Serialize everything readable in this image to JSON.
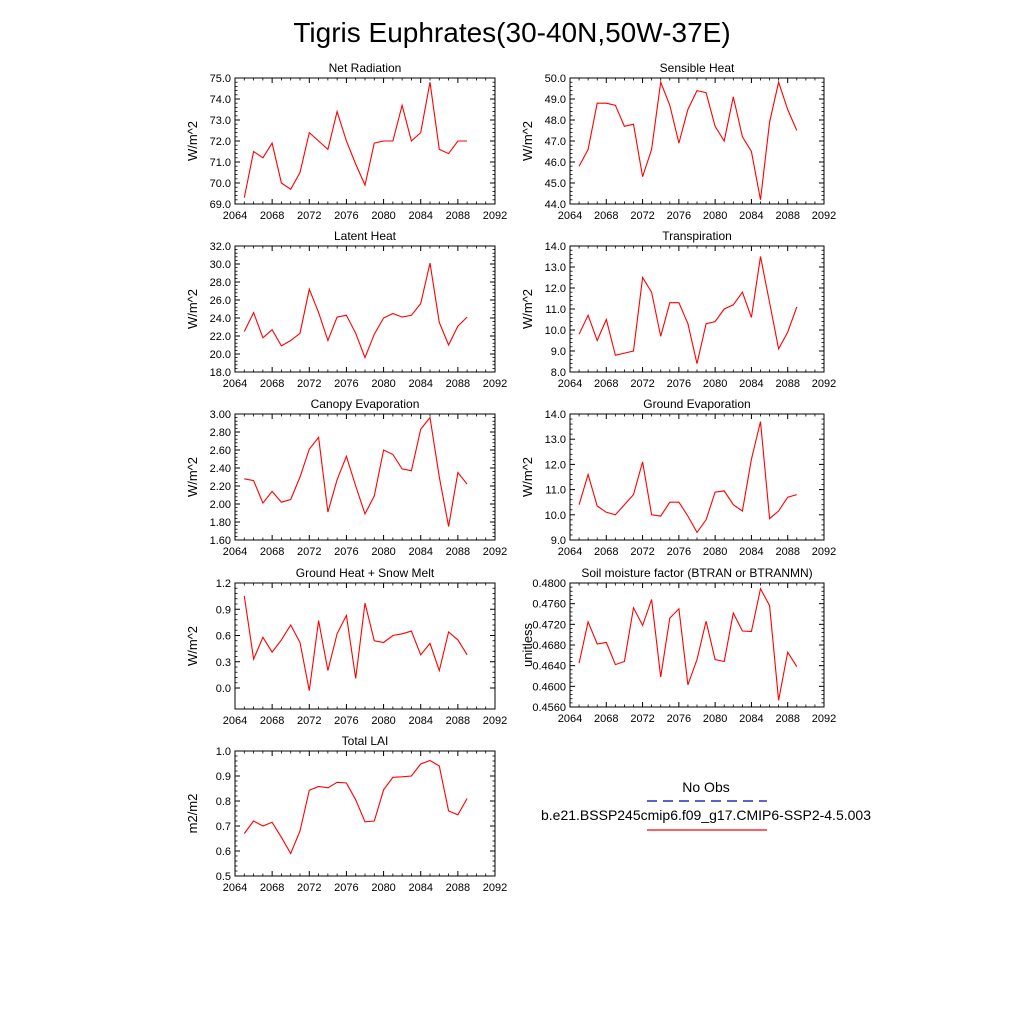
{
  "figure": {
    "title": "Tigris Euphrates(30-40N,50W-37E)"
  },
  "legend": {
    "obs_label": "No Obs",
    "obs_color": "#0000aa",
    "model_label": "b.e21.BSSP245cmip6.f09_g17.CMIP6-SSP2-4.5.003",
    "model_color": "#ff0000"
  },
  "chart_data": [
    {
      "type": "line",
      "title": "Net Radiation",
      "ylabel": "W/m^2",
      "xlabel": "",
      "xlim": [
        2064,
        2092
      ],
      "ylim": [
        69.0,
        75.0
      ],
      "x_ticks": [
        2064,
        2068,
        2072,
        2076,
        2080,
        2084,
        2088,
        2092
      ],
      "y_ticks": [
        "69.0",
        "70.0",
        "71.0",
        "72.0",
        "73.0",
        "74.0",
        "75.0"
      ],
      "series": [
        {
          "color": "#ff0000",
          "x": [
            2065,
            2066,
            2067,
            2068,
            2069,
            2070,
            2071,
            2072,
            2073,
            2074,
            2075,
            2076,
            2077,
            2078,
            2079,
            2080,
            2081,
            2082,
            2083,
            2084,
            2085,
            2086,
            2087,
            2088,
            2089
          ],
          "values": [
            69.3,
            71.5,
            71.2,
            71.9,
            70.0,
            69.7,
            70.5,
            72.4,
            72.0,
            71.6,
            73.4,
            72.0,
            70.9,
            69.9,
            71.9,
            72.0,
            72.0,
            73.7,
            72.0,
            72.4,
            74.8,
            71.6,
            71.4,
            72.0,
            72.0
          ]
        }
      ]
    },
    {
      "type": "line",
      "title": "Sensible Heat",
      "ylabel": "W/m^2",
      "xlabel": "",
      "xlim": [
        2064,
        2092
      ],
      "ylim": [
        44.0,
        50.0
      ],
      "x_ticks": [
        2064,
        2068,
        2072,
        2076,
        2080,
        2084,
        2088,
        2092
      ],
      "y_ticks": [
        "44.0",
        "45.0",
        "46.0",
        "47.0",
        "48.0",
        "49.0",
        "50.0"
      ],
      "series": [
        {
          "color": "#ff0000",
          "x": [
            2065,
            2066,
            2067,
            2068,
            2069,
            2070,
            2071,
            2072,
            2073,
            2074,
            2075,
            2076,
            2077,
            2078,
            2079,
            2080,
            2081,
            2082,
            2083,
            2084,
            2085,
            2086,
            2087,
            2088,
            2089
          ],
          "values": [
            45.8,
            46.6,
            48.8,
            48.8,
            48.7,
            47.7,
            47.8,
            45.3,
            46.6,
            49.8,
            48.7,
            46.9,
            48.5,
            49.4,
            49.3,
            47.7,
            47.0,
            49.1,
            47.2,
            46.5,
            44.2,
            47.9,
            49.8,
            48.5,
            47.5
          ]
        }
      ]
    },
    {
      "type": "line",
      "title": "Latent Heat",
      "ylabel": "W/m^2",
      "xlabel": "",
      "xlim": [
        2064,
        2092
      ],
      "ylim": [
        18.0,
        32.0
      ],
      "x_ticks": [
        2064,
        2068,
        2072,
        2076,
        2080,
        2084,
        2088,
        2092
      ],
      "y_ticks": [
        "18.0",
        "20.0",
        "22.0",
        "24.0",
        "26.0",
        "28.0",
        "30.0",
        "32.0"
      ],
      "series": [
        {
          "color": "#ff0000",
          "x": [
            2065,
            2066,
            2067,
            2068,
            2069,
            2070,
            2071,
            2072,
            2073,
            2074,
            2075,
            2076,
            2077,
            2078,
            2079,
            2080,
            2081,
            2082,
            2083,
            2084,
            2085,
            2086,
            2087,
            2088,
            2089
          ],
          "values": [
            22.5,
            24.6,
            21.8,
            22.7,
            20.9,
            21.5,
            22.3,
            27.2,
            24.6,
            21.5,
            24.1,
            24.3,
            22.3,
            19.6,
            22.2,
            24.0,
            24.5,
            24.1,
            24.3,
            25.6,
            30.1,
            23.5,
            21.0,
            23.1,
            24.1
          ]
        }
      ]
    },
    {
      "type": "line",
      "title": "Transpiration",
      "ylabel": "W/m^2",
      "xlabel": "",
      "xlim": [
        2064,
        2092
      ],
      "ylim": [
        8.0,
        14.0
      ],
      "x_ticks": [
        2064,
        2068,
        2072,
        2076,
        2080,
        2084,
        2088,
        2092
      ],
      "y_ticks": [
        "8.0",
        "9.0",
        "10.0",
        "11.0",
        "12.0",
        "13.0",
        "14.0"
      ],
      "series": [
        {
          "color": "#ff0000",
          "x": [
            2065,
            2066,
            2067,
            2068,
            2069,
            2070,
            2071,
            2072,
            2073,
            2074,
            2075,
            2076,
            2077,
            2078,
            2079,
            2080,
            2081,
            2082,
            2083,
            2084,
            2085,
            2086,
            2087,
            2088,
            2089
          ],
          "values": [
            9.8,
            10.7,
            9.5,
            10.5,
            8.8,
            8.9,
            9.0,
            12.5,
            11.8,
            9.7,
            11.3,
            11.3,
            10.3,
            8.4,
            10.3,
            10.4,
            11.0,
            11.2,
            11.8,
            10.6,
            13.5,
            11.3,
            9.1,
            9.9,
            11.1
          ]
        }
      ]
    },
    {
      "type": "line",
      "title": "Canopy Evaporation",
      "ylabel": "W/m^2",
      "xlabel": "",
      "xlim": [
        2064,
        2092
      ],
      "ylim": [
        1.6,
        3.0
      ],
      "x_ticks": [
        2064,
        2068,
        2072,
        2076,
        2080,
        2084,
        2088,
        2092
      ],
      "y_ticks": [
        "1.60",
        "1.80",
        "2.00",
        "2.20",
        "2.40",
        "2.60",
        "2.80",
        "3.00"
      ],
      "series": [
        {
          "color": "#ff0000",
          "x": [
            2065,
            2066,
            2067,
            2068,
            2069,
            2070,
            2071,
            2072,
            2073,
            2074,
            2075,
            2076,
            2077,
            2078,
            2079,
            2080,
            2081,
            2082,
            2083,
            2084,
            2085,
            2086,
            2087,
            2088,
            2089
          ],
          "values": [
            2.28,
            2.26,
            2.01,
            2.14,
            2.02,
            2.05,
            2.3,
            2.61,
            2.74,
            1.91,
            2.27,
            2.53,
            2.2,
            1.89,
            2.09,
            2.6,
            2.55,
            2.39,
            2.37,
            2.83,
            2.96,
            2.3,
            1.75,
            2.35,
            2.22
          ]
        }
      ]
    },
    {
      "type": "line",
      "title": "Ground Evaporation",
      "ylabel": "W/m^2",
      "xlabel": "",
      "xlim": [
        2064,
        2092
      ],
      "ylim": [
        9.0,
        14.0
      ],
      "x_ticks": [
        2064,
        2068,
        2072,
        2076,
        2080,
        2084,
        2088,
        2092
      ],
      "y_ticks": [
        "9.0",
        "10.0",
        "11.0",
        "12.0",
        "13.0",
        "14.0"
      ],
      "series": [
        {
          "color": "#ff0000",
          "x": [
            2065,
            2066,
            2067,
            2068,
            2069,
            2070,
            2071,
            2072,
            2073,
            2074,
            2075,
            2076,
            2077,
            2078,
            2079,
            2080,
            2081,
            2082,
            2083,
            2084,
            2085,
            2086,
            2087,
            2088,
            2089
          ],
          "values": [
            10.4,
            11.6,
            10.35,
            10.1,
            10.0,
            10.4,
            10.8,
            12.1,
            10.0,
            9.95,
            10.5,
            10.5,
            9.95,
            9.3,
            9.8,
            10.9,
            10.95,
            10.4,
            10.15,
            12.2,
            13.7,
            9.85,
            10.15,
            10.7,
            10.8
          ]
        }
      ]
    },
    {
      "type": "line",
      "title": "Ground Heat + Snow Melt",
      "ylabel": "W/m^2",
      "xlabel": "",
      "xlim": [
        2064,
        2092
      ],
      "ylim": [
        -0.24,
        1.2
      ],
      "x_ticks": [
        2064,
        2068,
        2072,
        2076,
        2080,
        2084,
        2088,
        2092
      ],
      "y_ticks": [
        "0.0",
        "0.3",
        "0.6",
        "0.9",
        "1.2"
      ],
      "y_tick_values": [
        0.0,
        0.3,
        0.6,
        0.9,
        1.2
      ],
      "series": [
        {
          "color": "#ff0000",
          "x": [
            2065,
            2066,
            2067,
            2068,
            2069,
            2070,
            2071,
            2072,
            2073,
            2074,
            2075,
            2076,
            2077,
            2078,
            2079,
            2080,
            2081,
            2082,
            2083,
            2084,
            2085,
            2086,
            2087,
            2088,
            2089
          ],
          "values": [
            1.05,
            0.33,
            0.58,
            0.41,
            0.55,
            0.72,
            0.52,
            -0.03,
            0.77,
            0.2,
            0.62,
            0.83,
            0.11,
            0.97,
            0.54,
            0.52,
            0.6,
            0.62,
            0.65,
            0.38,
            0.51,
            0.2,
            0.64,
            0.55,
            0.38
          ]
        }
      ]
    },
    {
      "type": "line",
      "title": "Soil moisture factor (BTRAN or BTRANMN)",
      "ylabel": "unitless",
      "xlabel": "",
      "xlim": [
        2064,
        2092
      ],
      "ylim": [
        0.456,
        0.48
      ],
      "x_ticks": [
        2064,
        2068,
        2072,
        2076,
        2080,
        2084,
        2088,
        2092
      ],
      "y_ticks": [
        "0.4560",
        "0.4600",
        "0.4640",
        "0.4680",
        "0.4720",
        "0.4760",
        "0.4800"
      ],
      "series": [
        {
          "color": "#ff0000",
          "x": [
            2065,
            2066,
            2067,
            2068,
            2069,
            2070,
            2071,
            2072,
            2073,
            2074,
            2075,
            2076,
            2077,
            2078,
            2079,
            2080,
            2081,
            2082,
            2083,
            2084,
            2085,
            2086,
            2087,
            2088,
            2089
          ],
          "values": [
            0.4645,
            0.4725,
            0.4682,
            0.4685,
            0.4642,
            0.4648,
            0.4752,
            0.4718,
            0.4768,
            0.4618,
            0.4732,
            0.475,
            0.4603,
            0.4652,
            0.4726,
            0.4652,
            0.4648,
            0.4742,
            0.4707,
            0.4706,
            0.4789,
            0.4756,
            0.4573,
            0.4666,
            0.4638
          ]
        }
      ]
    },
    {
      "type": "line",
      "title": "Total LAI",
      "ylabel": "m2/m2",
      "xlabel": "",
      "xlim": [
        2064,
        2092
      ],
      "ylim": [
        0.5,
        1.0
      ],
      "x_ticks": [
        2064,
        2068,
        2072,
        2076,
        2080,
        2084,
        2088,
        2092
      ],
      "y_ticks": [
        "0.5",
        "0.6",
        "0.7",
        "0.8",
        "0.9",
        "1.0"
      ],
      "series": [
        {
          "color": "#ff0000",
          "x": [
            2065,
            2066,
            2067,
            2068,
            2069,
            2070,
            2071,
            2072,
            2073,
            2074,
            2075,
            2076,
            2077,
            2078,
            2079,
            2080,
            2081,
            2082,
            2083,
            2084,
            2085,
            2086,
            2087,
            2088,
            2089
          ],
          "values": [
            0.67,
            0.72,
            0.7,
            0.715,
            0.655,
            0.59,
            0.68,
            0.843,
            0.858,
            0.853,
            0.875,
            0.872,
            0.805,
            0.717,
            0.72,
            0.845,
            0.895,
            0.897,
            0.9,
            0.948,
            0.962,
            0.94,
            0.76,
            0.745,
            0.81
          ]
        }
      ]
    }
  ]
}
